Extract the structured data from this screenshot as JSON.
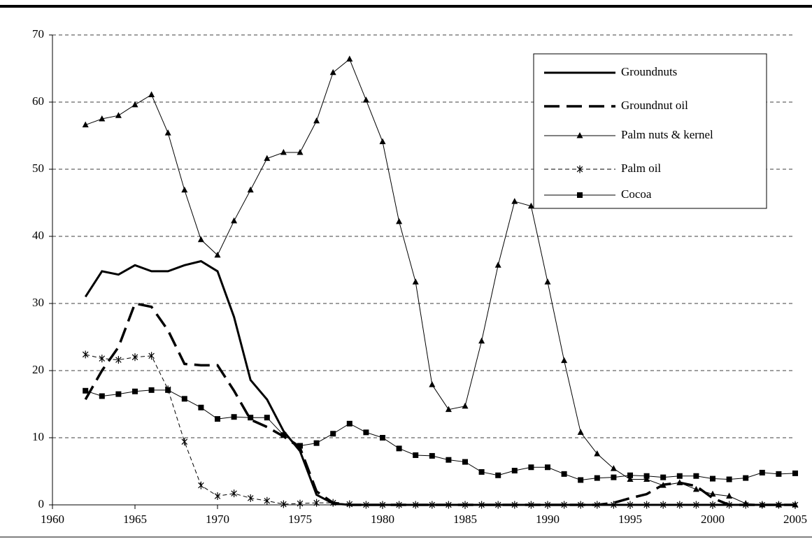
{
  "chart_data": {
    "type": "line",
    "x": [
      1962,
      1963,
      1964,
      1965,
      1966,
      1967,
      1968,
      1969,
      1970,
      1971,
      1972,
      1973,
      1974,
      1975,
      1976,
      1977,
      1978,
      1979,
      1980,
      1981,
      1982,
      1983,
      1984,
      1985,
      1986,
      1987,
      1988,
      1989,
      1990,
      1991,
      1992,
      1993,
      1994,
      1995,
      1996,
      1997,
      1998,
      1999,
      2000,
      2001,
      2002,
      2003,
      2004,
      2005
    ],
    "series": [
      {
        "name": "Groundnuts",
        "color": "#000000",
        "width": 3,
        "dash": "none",
        "marker": "none",
        "values": [
          31,
          34.8,
          34.3,
          35.7,
          34.8,
          34.8,
          35.7,
          36.3,
          34.8,
          28,
          18.6,
          15.7,
          11,
          8,
          1.5,
          0.2,
          0,
          0,
          0,
          0,
          0,
          0,
          0,
          0,
          0,
          0,
          0,
          0,
          0,
          0,
          0,
          0,
          0,
          0,
          0,
          0,
          0,
          0,
          0,
          0,
          0,
          0,
          0,
          0
        ]
      },
      {
        "name": "Groundnut oil",
        "color": "#000000",
        "width": 3.5,
        "dash": "22,10",
        "marker": "none",
        "values": [
          15.7,
          20,
          23.5,
          30,
          29.5,
          26,
          21,
          20.8,
          20.8,
          17,
          12.7,
          11.6,
          10.2,
          8.5,
          2,
          0.3,
          0,
          0,
          0,
          0,
          0,
          0,
          0,
          0,
          0,
          0,
          0,
          0,
          0,
          0,
          0,
          0,
          0.3,
          1,
          1.6,
          3,
          3.3,
          2.8,
          1,
          0,
          0,
          0,
          0,
          0
        ]
      },
      {
        "name": "Palm nuts & kernel",
        "color": "#000000",
        "width": 1,
        "dash": "none",
        "marker": "triangle",
        "values": [
          56.6,
          57.5,
          58,
          59.6,
          61.1,
          55.4,
          46.9,
          39.5,
          37.2,
          42.3,
          46.9,
          51.6,
          52.5,
          52.5,
          57.2,
          64.4,
          66.4,
          60.3,
          54.1,
          42.2,
          33.2,
          17.9,
          14.2,
          14.7,
          24.4,
          35.7,
          45.2,
          44.5,
          33.2,
          21.5,
          10.8,
          7.6,
          5.4,
          3.8,
          3.8,
          2.9,
          3.3,
          2.3,
          1.6,
          1.3,
          0.2,
          0,
          0,
          0
        ]
      },
      {
        "name": "Palm oil",
        "color": "#000000",
        "width": 1,
        "dash": "6,4",
        "marker": "asterisk",
        "values": [
          22.4,
          21.8,
          21.6,
          22,
          22.2,
          17.2,
          9.4,
          2.9,
          1.3,
          1.7,
          1,
          0.6,
          0.1,
          0.2,
          0.3,
          0.3,
          0.1,
          0,
          0,
          0,
          0,
          0,
          0,
          0,
          0,
          0,
          0,
          0,
          0,
          0,
          0,
          0,
          0,
          0,
          0,
          0,
          0,
          0,
          0,
          0,
          0,
          0,
          0,
          0
        ]
      },
      {
        "name": "Cocoa",
        "color": "#000000",
        "width": 1,
        "dash": "none",
        "marker": "square",
        "values": [
          17,
          16.2,
          16.5,
          16.9,
          17.1,
          17.1,
          15.8,
          14.5,
          12.8,
          13.1,
          13,
          13,
          10.4,
          8.8,
          9.2,
          10.6,
          12.1,
          10.8,
          10,
          8.4,
          7.4,
          7.3,
          6.7,
          6.4,
          4.9,
          4.4,
          5.1,
          5.6,
          5.6,
          4.6,
          3.7,
          4,
          4.1,
          4.4,
          4.3,
          4.1,
          4.3,
          4.3,
          3.9,
          3.8,
          4,
          4.8,
          4.6,
          4.7
        ]
      }
    ],
    "xlim": [
      1960,
      2005
    ],
    "xticks": [
      1960,
      1965,
      1970,
      1975,
      1980,
      1985,
      1990,
      1995,
      2000,
      2005
    ],
    "ylim": [
      0,
      70
    ],
    "yticks": [
      0,
      10,
      20,
      30,
      40,
      50,
      60,
      70
    ],
    "grid": true,
    "legend": "upper right"
  }
}
